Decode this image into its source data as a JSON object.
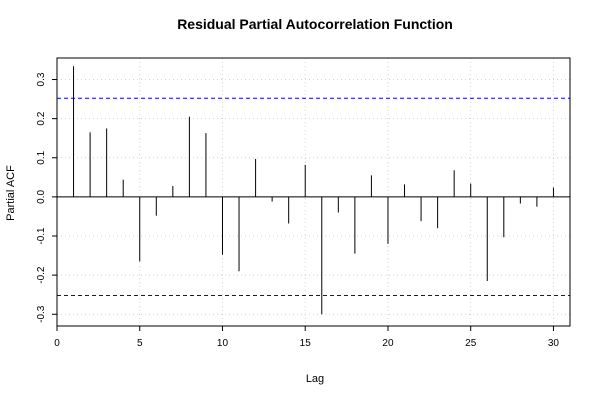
{
  "chart_data": {
    "type": "bar",
    "title": "Residual Partial Autocorrelation Function",
    "xlabel": "Lag",
    "ylabel": "Partial ACF",
    "xlim": [
      0,
      31
    ],
    "ylim": [
      -0.33,
      0.355
    ],
    "x_ticks": [
      0,
      5,
      10,
      15,
      20,
      25,
      30
    ],
    "y_ticks": [
      -0.3,
      -0.2,
      -0.1,
      0.0,
      0.1,
      0.2,
      0.3
    ],
    "confidence_bound": 0.252,
    "grid": true,
    "colors": {
      "bars": "#000000",
      "confidence_lines": "#0000ff",
      "zero_line": "#000000",
      "grid": "#d3d3d3"
    },
    "x": [
      1,
      2,
      3,
      4,
      5,
      6,
      7,
      8,
      9,
      10,
      11,
      12,
      13,
      14,
      15,
      16,
      17,
      18,
      19,
      20,
      21,
      22,
      23,
      24,
      25,
      26,
      27,
      28,
      29,
      30
    ],
    "values": [
      0.334,
      0.165,
      0.175,
      0.044,
      -0.165,
      -0.048,
      0.028,
      0.205,
      0.163,
      -0.148,
      -0.19,
      0.097,
      -0.012,
      -0.068,
      0.082,
      -0.3,
      -0.04,
      -0.145,
      0.055,
      -0.12,
      0.032,
      -0.062,
      -0.08,
      0.068,
      0.034,
      -0.215,
      -0.103,
      -0.017,
      -0.025,
      0.024
    ]
  }
}
